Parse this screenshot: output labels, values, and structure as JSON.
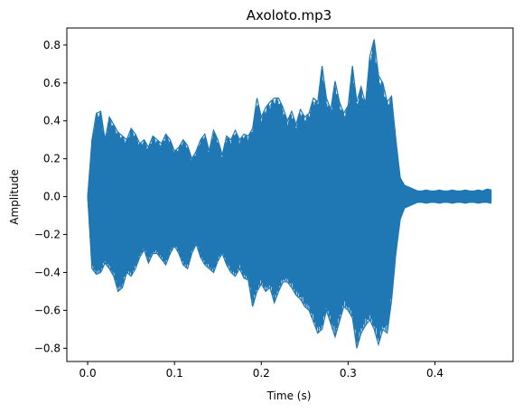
{
  "chart_data": {
    "type": "line",
    "title": "Axoloto.mp3",
    "xlabel": "Time (s)",
    "ylabel": "Amplitude",
    "xlim": [
      -0.024,
      0.49
    ],
    "ylim": [
      -0.87,
      0.89
    ],
    "xticks": [
      0.0,
      0.1,
      0.2,
      0.3,
      0.4
    ],
    "xtick_labels": [
      "0.0",
      "0.1",
      "0.2",
      "0.3",
      "0.4"
    ],
    "yticks": [
      -0.8,
      -0.6,
      -0.4,
      -0.2,
      0.0,
      0.2,
      0.4,
      0.6,
      0.8
    ],
    "ytick_labels": [
      "−0.8",
      "−0.6",
      "−0.4",
      "−0.2",
      "0.0",
      "0.2",
      "0.4",
      "0.6",
      "0.8"
    ],
    "grid": false,
    "legend": "none",
    "series_color": "#1f77b4",
    "series": [
      {
        "x": [
          0.0,
          0.005,
          0.01,
          0.015,
          0.02,
          0.025,
          0.03,
          0.035,
          0.04,
          0.045,
          0.05,
          0.055,
          0.06,
          0.065,
          0.07,
          0.075,
          0.08,
          0.085,
          0.09,
          0.095,
          0.1,
          0.105,
          0.11,
          0.115,
          0.12,
          0.125,
          0.13,
          0.135,
          0.14,
          0.145,
          0.15,
          0.155,
          0.16,
          0.165,
          0.17,
          0.175,
          0.18,
          0.185,
          0.19,
          0.195,
          0.2,
          0.205,
          0.21,
          0.215,
          0.22,
          0.225,
          0.23,
          0.235,
          0.24,
          0.245,
          0.25,
          0.255,
          0.26,
          0.265,
          0.27,
          0.275,
          0.28,
          0.285,
          0.29,
          0.295,
          0.3,
          0.305,
          0.31,
          0.315,
          0.32,
          0.325,
          0.33,
          0.335,
          0.34,
          0.345,
          0.35,
          0.355,
          0.36,
          0.365,
          0.37,
          0.375,
          0.38,
          0.385,
          0.39,
          0.395,
          0.4,
          0.405,
          0.41,
          0.415,
          0.42,
          0.425,
          0.43,
          0.435,
          0.44,
          0.445,
          0.45,
          0.455,
          0.46,
          0.465
        ],
        "env_max": [
          0.0,
          0.3,
          0.44,
          0.45,
          0.3,
          0.42,
          0.38,
          0.34,
          0.32,
          0.3,
          0.36,
          0.33,
          0.28,
          0.3,
          0.26,
          0.32,
          0.3,
          0.28,
          0.33,
          0.3,
          0.24,
          0.26,
          0.3,
          0.27,
          0.2,
          0.24,
          0.3,
          0.33,
          0.24,
          0.35,
          0.3,
          0.22,
          0.32,
          0.3,
          0.35,
          0.3,
          0.33,
          0.32,
          0.36,
          0.52,
          0.42,
          0.47,
          0.5,
          0.52,
          0.52,
          0.47,
          0.4,
          0.45,
          0.38,
          0.46,
          0.42,
          0.44,
          0.52,
          0.5,
          0.69,
          0.52,
          0.46,
          0.61,
          0.5,
          0.44,
          0.48,
          0.69,
          0.5,
          0.58,
          0.49,
          0.74,
          0.83,
          0.64,
          0.6,
          0.5,
          0.53,
          0.3,
          0.1,
          0.06,
          0.05,
          0.04,
          0.03,
          0.03,
          0.035,
          0.03,
          0.03,
          0.035,
          0.03,
          0.03,
          0.035,
          0.03,
          0.03,
          0.035,
          0.03,
          0.03,
          0.035,
          0.03,
          0.04,
          0.035
        ],
        "env_min": [
          0.0,
          -0.38,
          -0.41,
          -0.4,
          -0.35,
          -0.38,
          -0.42,
          -0.5,
          -0.48,
          -0.4,
          -0.42,
          -0.38,
          -0.32,
          -0.28,
          -0.35,
          -0.3,
          -0.3,
          -0.33,
          -0.36,
          -0.3,
          -0.26,
          -0.3,
          -0.36,
          -0.38,
          -0.3,
          -0.25,
          -0.32,
          -0.36,
          -0.38,
          -0.4,
          -0.34,
          -0.3,
          -0.36,
          -0.4,
          -0.42,
          -0.38,
          -0.43,
          -0.44,
          -0.58,
          -0.5,
          -0.46,
          -0.5,
          -0.48,
          -0.56,
          -0.5,
          -0.45,
          -0.45,
          -0.48,
          -0.52,
          -0.54,
          -0.58,
          -0.6,
          -0.66,
          -0.72,
          -0.7,
          -0.6,
          -0.67,
          -0.74,
          -0.66,
          -0.58,
          -0.6,
          -0.64,
          -0.8,
          -0.72,
          -0.68,
          -0.65,
          -0.7,
          -0.78,
          -0.7,
          -0.72,
          -0.55,
          -0.3,
          -0.12,
          -0.06,
          -0.05,
          -0.04,
          -0.03,
          -0.03,
          -0.035,
          -0.03,
          -0.03,
          -0.035,
          -0.03,
          -0.03,
          -0.035,
          -0.03,
          -0.03,
          -0.035,
          -0.03,
          -0.03,
          -0.035,
          -0.03,
          -0.03,
          -0.035
        ]
      }
    ]
  }
}
